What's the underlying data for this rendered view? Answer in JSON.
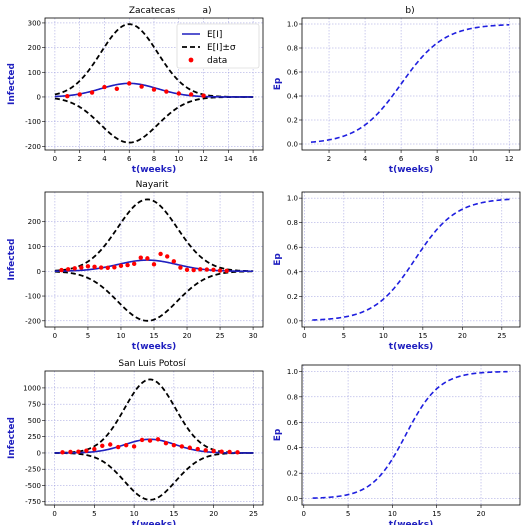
{
  "chart_data": [
    {
      "panel": "left-top",
      "type": "line",
      "title": "Zacatecas",
      "tag": "a)",
      "xlabel": "t(weeks)",
      "ylabel": "Infected",
      "xlim": [
        -0.8,
        16.8
      ],
      "ylim": [
        -215,
        320
      ],
      "xticks": [
        0,
        2,
        4,
        6,
        8,
        10,
        12,
        14,
        16
      ],
      "yticks": [
        -200,
        -100,
        0,
        100,
        200,
        300
      ],
      "grid": true,
      "legend": {
        "position": "top-right",
        "entries": [
          "E[I]",
          "E[I]±σ",
          "data"
        ]
      },
      "params": {
        "mu": 6,
        "sigma": 2.3,
        "peak": 55,
        "upper": 295,
        "lower": -185,
        "xmax": 16
      },
      "series": [
        {
          "name": "data",
          "kind": "scatter",
          "x": [
            1,
            2,
            3,
            4,
            5,
            6,
            7,
            8,
            9,
            10,
            11,
            12
          ],
          "y": [
            3,
            10,
            18,
            40,
            33,
            55,
            42,
            30,
            22,
            14,
            10,
            5
          ]
        }
      ]
    },
    {
      "panel": "right-top",
      "type": "line",
      "title": "",
      "tag": "b)",
      "xlabel": "t(weeks)",
      "ylabel": "Ep",
      "xlim": [
        0.5,
        12.6
      ],
      "ylim": [
        -0.05,
        1.05
      ],
      "xticks": [
        2,
        4,
        6,
        8,
        10,
        12
      ],
      "yticks": [
        0.0,
        0.2,
        0.4,
        0.6,
        0.8,
        1.0
      ],
      "grid": true,
      "params": {
        "mu": 6,
        "scale": 1.2,
        "xmin": 1,
        "xmax": 12
      }
    },
    {
      "panel": "left-middle",
      "type": "line",
      "title": "Nayarit",
      "tag": "",
      "xlabel": "t(weeks)",
      "ylabel": "Infected",
      "xlim": [
        -1.5,
        31.5
      ],
      "ylim": [
        -225,
        320
      ],
      "xticks": [
        0,
        5,
        10,
        15,
        20,
        25,
        30
      ],
      "yticks": [
        -200,
        -100,
        0,
        100,
        200
      ],
      "grid": true,
      "params": {
        "mu": 14,
        "sigma": 4.5,
        "peak": 45,
        "upper": 290,
        "lower": -200,
        "xmax": 30
      },
      "series": [
        {
          "name": "data",
          "kind": "scatter",
          "x": [
            1,
            2,
            3,
            4,
            5,
            6,
            7,
            8,
            9,
            10,
            11,
            12,
            13,
            14,
            15,
            16,
            17,
            18,
            19,
            20,
            21,
            22,
            23,
            24,
            25,
            26
          ],
          "y": [
            5,
            8,
            12,
            15,
            20,
            18,
            15,
            14,
            16,
            22,
            25,
            30,
            55,
            52,
            28,
            70,
            60,
            40,
            15,
            6,
            5,
            8,
            7,
            6,
            3,
            2
          ]
        }
      ]
    },
    {
      "panel": "right-middle",
      "type": "line",
      "title": "",
      "tag": "",
      "xlabel": "t(weeks)",
      "ylabel": "Ep",
      "xlim": [
        -0.3,
        27.3
      ],
      "ylim": [
        -0.05,
        1.05
      ],
      "xticks": [
        0,
        5,
        10,
        15,
        20,
        25
      ],
      "yticks": [
        0.0,
        0.2,
        0.4,
        0.6,
        0.8,
        1.0
      ],
      "grid": true,
      "params": {
        "mu": 14,
        "scale": 2.6,
        "xmin": 1,
        "xmax": 26
      }
    },
    {
      "panel": "left-bottom",
      "type": "line",
      "title": "San Luis Potosí",
      "tag": "",
      "xlabel": "t(weeks)",
      "ylabel": "Infected",
      "xlim": [
        -1.2,
        26.2
      ],
      "ylim": [
        -800,
        1260
      ],
      "xticks": [
        0,
        5,
        10,
        15,
        20,
        25
      ],
      "yticks": [
        -750,
        -500,
        -250,
        0,
        250,
        500,
        750,
        1000
      ],
      "grid": true,
      "params": {
        "mu": 12,
        "sigma": 3.2,
        "peak": 210,
        "upper": 1130,
        "lower": -720,
        "xmax": 25
      },
      "series": [
        {
          "name": "data",
          "kind": "scatter",
          "x": [
            1,
            2,
            3,
            4,
            5,
            6,
            7,
            8,
            9,
            10,
            11,
            12,
            13,
            14,
            15,
            16,
            17,
            18,
            19,
            20,
            21,
            22,
            23
          ],
          "y": [
            10,
            15,
            20,
            35,
            60,
            110,
            130,
            90,
            120,
            100,
            200,
            190,
            210,
            150,
            120,
            100,
            80,
            60,
            40,
            30,
            20,
            15,
            10
          ]
        }
      ]
    },
    {
      "panel": "right-bottom",
      "type": "line",
      "title": "",
      "tag": "",
      "xlabel": "t(weeks)",
      "ylabel": "Ep",
      "xlim": [
        -0.2,
        24.4
      ],
      "ylim": [
        -0.05,
        1.05
      ],
      "xticks": [
        0,
        5,
        10,
        15,
        20
      ],
      "yticks": [
        0.0,
        0.2,
        0.4,
        0.6,
        0.8,
        1.0
      ],
      "grid": true,
      "params": {
        "mu": 11.5,
        "scale": 1.9,
        "xmin": 1,
        "xmax": 23
      }
    }
  ],
  "colors": {
    "mean": "#1f1fbf",
    "band": "#000000",
    "data": "#ff0000",
    "ep": "#1f1fdf",
    "grid": "#9999dd",
    "label": "#1f1fbf"
  }
}
